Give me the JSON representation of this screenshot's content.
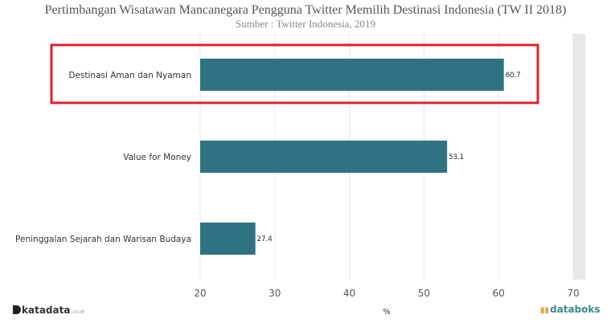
{
  "title": "Pertimbangan Wisatawan Mancanegara Pengguna Twitter Memilih Destinasi Indonesia (TW II 2018)",
  "subtitle": "Sumber : Twitter Indonesia, 2019",
  "colors": {
    "bar": "#2f7383",
    "highlight": "#e0202a",
    "sidebar": "#e8e8e8"
  },
  "chart_data": {
    "type": "bar",
    "orientation": "horizontal",
    "categories": [
      "Destinasi Aman dan Nyaman",
      "Value for Money",
      "Peninggalan Sejarah dan Warisan Budaya"
    ],
    "values": [
      60.7,
      53.1,
      27.4
    ],
    "value_labels": [
      "60.7",
      "53.1",
      "27.4"
    ],
    "xlabel": "%",
    "xlim": [
      20,
      70
    ],
    "xticks": [
      20,
      30,
      40,
      50,
      60,
      70
    ],
    "xtick_labels": [
      "20",
      "30",
      "40",
      "50",
      "60",
      "70"
    ],
    "grid": true,
    "highlighted_category": "Destinasi Aman dan Nyaman"
  },
  "footer": {
    "left_logo": "katadata",
    "left_logo_domain": ".co.id",
    "right_logo": "databoks"
  }
}
